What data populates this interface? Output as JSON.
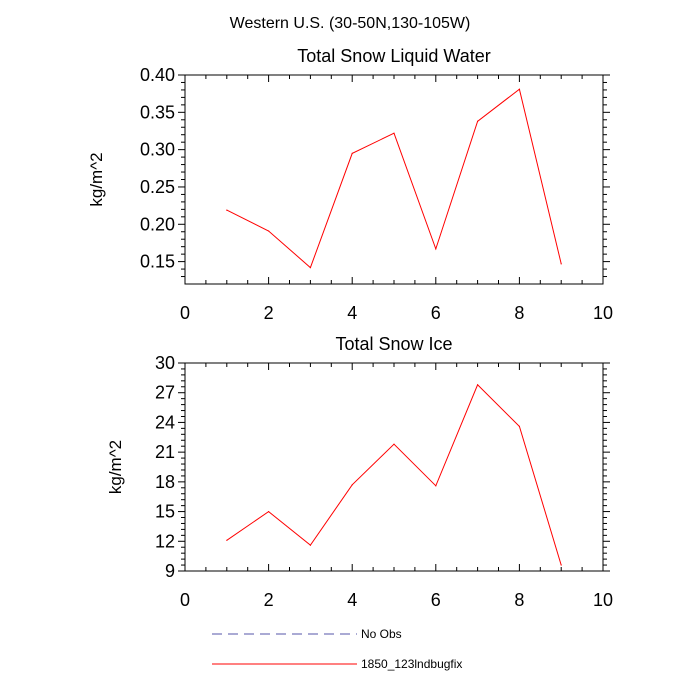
{
  "figure": {
    "suptitle": "Western U.S. (30-50N,130-105W)"
  },
  "chart_data": [
    {
      "type": "line",
      "title": "Total Snow Liquid Water",
      "xlabel": "",
      "ylabel": "kg/m^2",
      "xlim": [
        0,
        10
      ],
      "ylim": [
        0.12,
        0.4
      ],
      "xticks": [
        0,
        2,
        4,
        6,
        8,
        10
      ],
      "xtick_labels": [
        "0",
        "2",
        "4",
        "6",
        "8",
        "10"
      ],
      "yticks": [
        0.15,
        0.2,
        0.25,
        0.3,
        0.35,
        0.4
      ],
      "ytick_labels": [
        "0.15",
        "0.20",
        "0.25",
        "0.30",
        "0.35",
        "0.40"
      ],
      "grid": false,
      "series": [
        {
          "name": "1850_123lndbugfix",
          "color": "#ff0000",
          "x": [
            1,
            2,
            3,
            4,
            5,
            6,
            7,
            8,
            9
          ],
          "values": [
            0.219,
            0.191,
            0.142,
            0.295,
            0.322,
            0.167,
            0.338,
            0.381,
            0.147
          ]
        }
      ]
    },
    {
      "type": "line",
      "title": "Total Snow Ice",
      "xlabel": "",
      "ylabel": "kg/m^2",
      "xlim": [
        0,
        10
      ],
      "ylim": [
        9,
        30
      ],
      "xticks": [
        0,
        2,
        4,
        6,
        8,
        10
      ],
      "xtick_labels": [
        "0",
        "2",
        "4",
        "6",
        "8",
        "10"
      ],
      "yticks": [
        9,
        12,
        15,
        18,
        21,
        24,
        27,
        30
      ],
      "ytick_labels": [
        "9",
        "12",
        "15",
        "18",
        "21",
        "24",
        "27",
        "30"
      ],
      "grid": false,
      "series": [
        {
          "name": "1850_123lndbugfix",
          "color": "#ff0000",
          "x": [
            1,
            2,
            3,
            4,
            5,
            6,
            7,
            8,
            9
          ],
          "values": [
            12.1,
            15.0,
            11.6,
            17.7,
            21.8,
            17.6,
            27.8,
            23.6,
            9.6
          ]
        }
      ]
    }
  ],
  "legend": {
    "placement": "bottom-center",
    "entries": [
      {
        "label": "No Obs",
        "color": "#5555aa",
        "style": "dashed"
      },
      {
        "label": "1850_123lndbugfix",
        "color": "#ff0000",
        "style": "solid"
      }
    ]
  }
}
